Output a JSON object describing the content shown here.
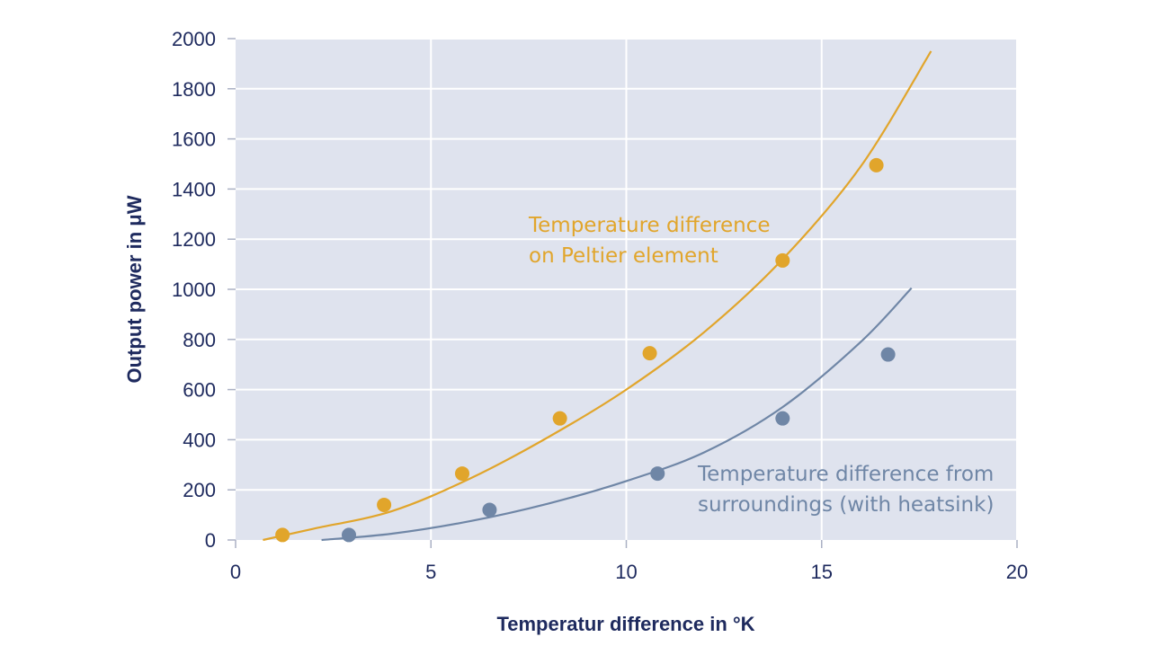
{
  "colors": {
    "plot_bg": "#dfe3ee",
    "grid": "#ffffff",
    "axis_text": "#1e2a5e",
    "series_peltier": "#e1a52b",
    "series_surroundings": "#6f86a6"
  },
  "chart_data": {
    "type": "scatter",
    "title": "",
    "xlabel": "Temperatur difference in °K",
    "ylabel": "Output power in μW",
    "xlim": [
      0,
      20
    ],
    "ylim": [
      0,
      2000
    ],
    "xticks": [
      0,
      5,
      10,
      15,
      20
    ],
    "yticks": [
      0,
      200,
      400,
      600,
      800,
      1000,
      1200,
      1400,
      1600,
      1800,
      2000
    ],
    "grid": true,
    "series": [
      {
        "name": "Temperature difference on Peltier element",
        "label_lines": [
          "Temperature difference",
          "on Peltier element"
        ],
        "color": "#e1a52b",
        "points": [
          {
            "x": 1.2,
            "y": 20
          },
          {
            "x": 3.8,
            "y": 140
          },
          {
            "x": 5.8,
            "y": 265
          },
          {
            "x": 8.3,
            "y": 485
          },
          {
            "x": 10.6,
            "y": 745
          },
          {
            "x": 14.0,
            "y": 1115
          },
          {
            "x": 16.4,
            "y": 1495
          }
        ],
        "fit_curve": [
          {
            "x": 0.7,
            "y": 0
          },
          {
            "x": 2.0,
            "y": 45
          },
          {
            "x": 4.0,
            "y": 115
          },
          {
            "x": 6.0,
            "y": 245
          },
          {
            "x": 8.0,
            "y": 410
          },
          {
            "x": 10.0,
            "y": 600
          },
          {
            "x": 12.0,
            "y": 830
          },
          {
            "x": 14.0,
            "y": 1120
          },
          {
            "x": 16.0,
            "y": 1490
          },
          {
            "x": 17.8,
            "y": 1950
          }
        ]
      },
      {
        "name": "Temperature difference from surroundings (with heatsink)",
        "label_lines": [
          "Temperature difference from",
          "surroundings (with heatsink)"
        ],
        "color": "#6f86a6",
        "points": [
          {
            "x": 2.9,
            "y": 20
          },
          {
            "x": 6.5,
            "y": 120
          },
          {
            "x": 10.8,
            "y": 265
          },
          {
            "x": 14.0,
            "y": 485
          },
          {
            "x": 16.7,
            "y": 740
          }
        ],
        "fit_curve": [
          {
            "x": 2.2,
            "y": 0
          },
          {
            "x": 4.0,
            "y": 25
          },
          {
            "x": 6.0,
            "y": 75
          },
          {
            "x": 8.0,
            "y": 145
          },
          {
            "x": 10.0,
            "y": 235
          },
          {
            "x": 12.0,
            "y": 350
          },
          {
            "x": 14.0,
            "y": 530
          },
          {
            "x": 16.0,
            "y": 790
          },
          {
            "x": 17.3,
            "y": 1005
          }
        ]
      }
    ]
  }
}
